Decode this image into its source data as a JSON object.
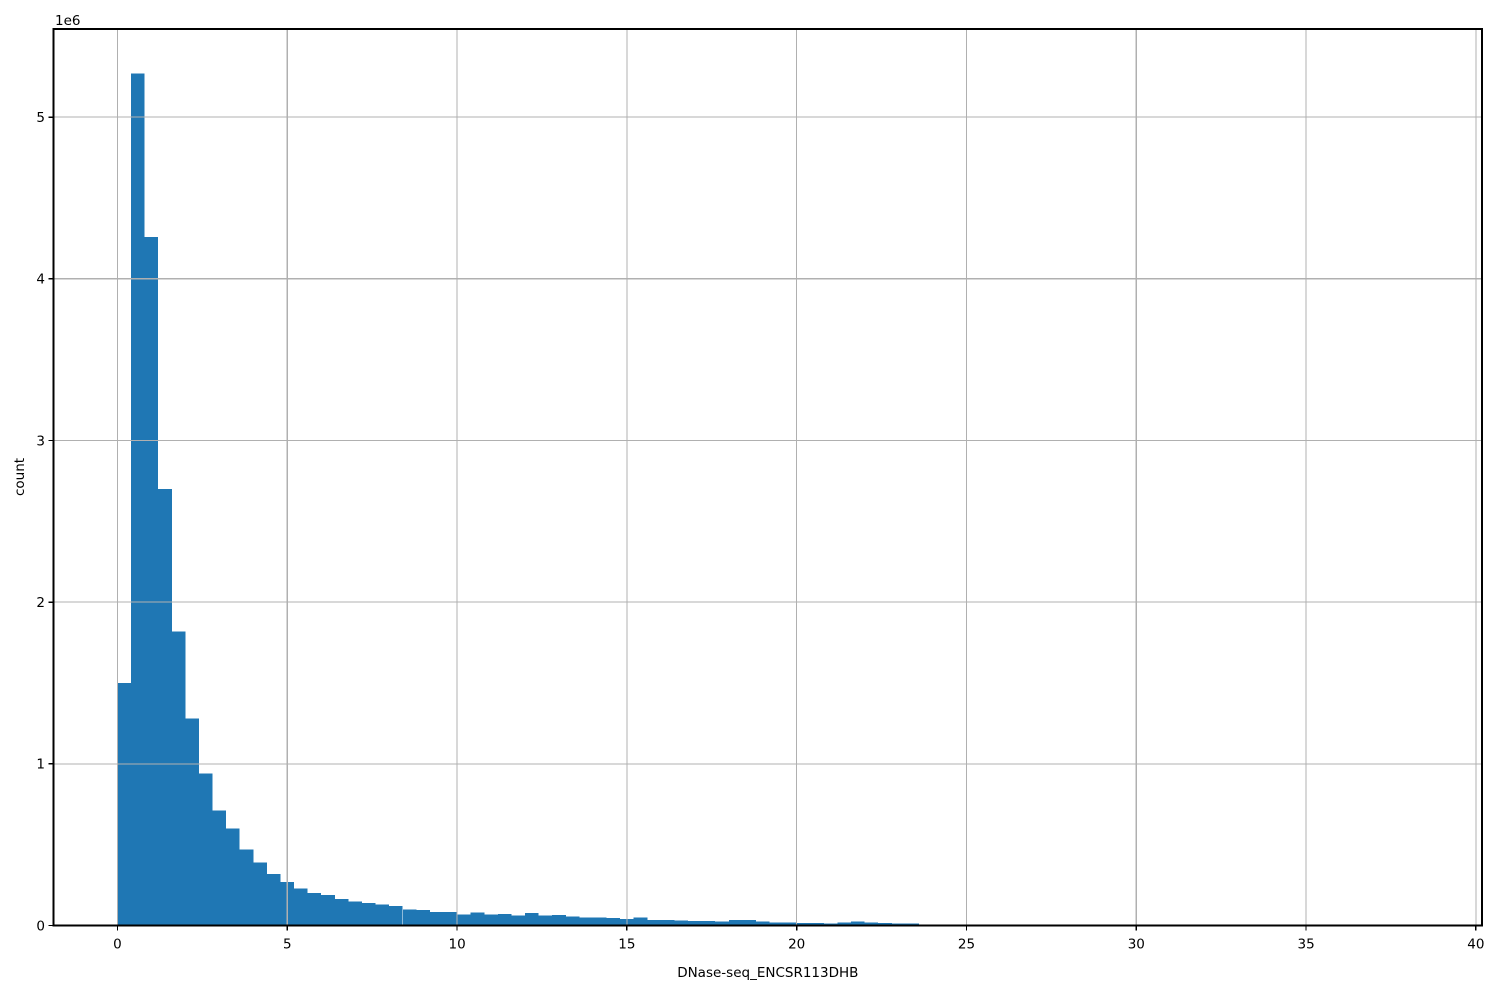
{
  "chart_data": {
    "type": "bar",
    "subtype": "histogram",
    "title": "",
    "xlabel": "DNase-seq_ENCSR113DHB",
    "ylabel": "count",
    "y_offset_label": "1e6",
    "bar_color": "#1f77b4",
    "grid_color": "#b0b0b0",
    "spine_color": "#000000",
    "grid": true,
    "grid_above_bars": true,
    "bin_start": 0,
    "bin_width": 0.4,
    "counts": [
      1500000,
      5270000,
      4260000,
      2700000,
      1820000,
      1280000,
      940000,
      710000,
      600000,
      470000,
      390000,
      320000,
      270000,
      230000,
      200000,
      190000,
      165000,
      150000,
      140000,
      130000,
      120000,
      100000,
      95000,
      85000,
      83000,
      68000,
      80000,
      68000,
      72000,
      62000,
      76000,
      62000,
      66000,
      56000,
      51000,
      51000,
      45000,
      41000,
      50000,
      35000,
      35000,
      30000,
      27000,
      27000,
      25000,
      35000,
      33000,
      25000,
      20000,
      18000,
      14000,
      14000,
      12000,
      20000,
      24000,
      20000,
      14000,
      12000,
      12000,
      0
    ],
    "x_ticks": [
      0,
      5,
      10,
      15,
      20,
      25,
      30,
      35,
      40
    ],
    "x_tick_labels": [
      "0",
      "5",
      "10",
      "15",
      "20",
      "25",
      "30",
      "35",
      "40"
    ],
    "y_ticks": [
      0,
      1000000,
      2000000,
      3000000,
      4000000,
      5000000
    ],
    "y_tick_labels": [
      "0",
      "1",
      "2",
      "3",
      "4",
      "5"
    ],
    "xlim": [
      -1.884,
      40.18
    ],
    "ylim": [
      0,
      5545000
    ],
    "legend": "none"
  }
}
